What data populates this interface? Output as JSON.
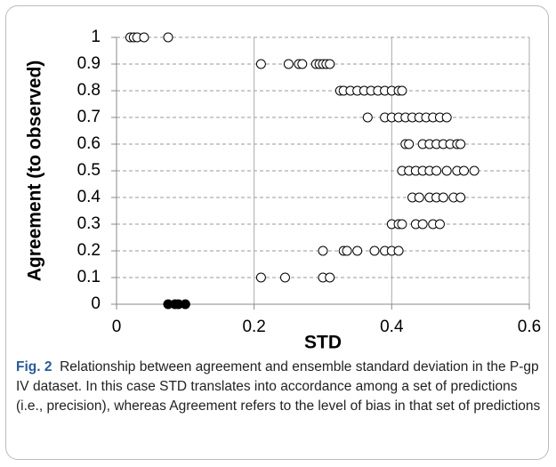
{
  "chart_data": {
    "type": "scatter",
    "xlabel": "STD",
    "ylabel": "Agreement (to observed)",
    "xlim": [
      0,
      0.6
    ],
    "ylim": [
      0,
      1
    ],
    "xticks": [
      0,
      0.2,
      0.4,
      0.6
    ],
    "yticks": [
      0,
      0.1,
      0.2,
      0.3,
      0.4,
      0.5,
      0.6,
      0.7,
      0.8,
      0.9,
      1
    ],
    "grid": true,
    "series": [
      {
        "color": "#000000",
        "marker": "open",
        "x": [
          0.02,
          0.025,
          0.03,
          0.04,
          0.075,
          0.21,
          0.25,
          0.265,
          0.27,
          0.29,
          0.295,
          0.3,
          0.305,
          0.31,
          0.325,
          0.33,
          0.34,
          0.35,
          0.36,
          0.37,
          0.38,
          0.39,
          0.4,
          0.41,
          0.415,
          0.365,
          0.39,
          0.4,
          0.41,
          0.42,
          0.43,
          0.44,
          0.45,
          0.46,
          0.47,
          0.48,
          0.42,
          0.425,
          0.445,
          0.455,
          0.465,
          0.475,
          0.485,
          0.495,
          0.5,
          0.415,
          0.425,
          0.435,
          0.445,
          0.455,
          0.465,
          0.48,
          0.495,
          0.505,
          0.52,
          0.43,
          0.44,
          0.455,
          0.465,
          0.475,
          0.49,
          0.5,
          0.4,
          0.41,
          0.415,
          0.435,
          0.445,
          0.46,
          0.47,
          0.3,
          0.33,
          0.335,
          0.35,
          0.375,
          0.39,
          0.4,
          0.41,
          0.21,
          0.245,
          0.3,
          0.31
        ],
        "values": [
          1,
          1,
          1,
          1,
          1,
          0.9,
          0.9,
          0.9,
          0.9,
          0.9,
          0.9,
          0.9,
          0.9,
          0.9,
          0.8,
          0.8,
          0.8,
          0.8,
          0.8,
          0.8,
          0.8,
          0.8,
          0.8,
          0.8,
          0.8,
          0.7,
          0.7,
          0.7,
          0.7,
          0.7,
          0.7,
          0.7,
          0.7,
          0.7,
          0.7,
          0.7,
          0.6,
          0.6,
          0.6,
          0.6,
          0.6,
          0.6,
          0.6,
          0.6,
          0.6,
          0.5,
          0.5,
          0.5,
          0.5,
          0.5,
          0.5,
          0.5,
          0.5,
          0.5,
          0.5,
          0.4,
          0.4,
          0.4,
          0.4,
          0.4,
          0.4,
          0.4,
          0.3,
          0.3,
          0.3,
          0.3,
          0.3,
          0.3,
          0.3,
          0.2,
          0.2,
          0.2,
          0.2,
          0.2,
          0.2,
          0.2,
          0.2,
          0.1,
          0.1,
          0.1,
          0.1
        ]
      },
      {
        "color": "#000000",
        "marker": "filled",
        "x": [
          0.075,
          0.085,
          0.09,
          0.1
        ],
        "values": [
          0,
          0,
          0,
          0
        ]
      }
    ]
  },
  "caption": {
    "label": "Fig. 2",
    "text": "Relationship between agreement and ensemble standard deviation in the P-gp IV dataset. In this case STD translates into accordance among a set of predictions (i.e., precision), whereas Agreement refers to the level of bias in that set of predictions"
  }
}
